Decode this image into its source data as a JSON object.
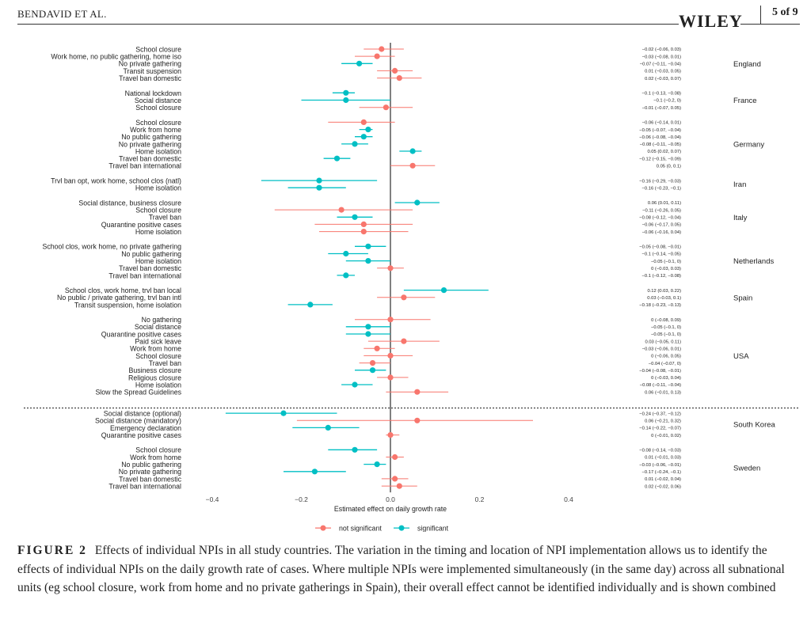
{
  "header": {
    "authors": "BENDAVID ET AL.",
    "publisher": "WILEY",
    "page": "5 of 9"
  },
  "caption": {
    "label": "FIGURE 2",
    "text": "Effects of individual NPIs in all study countries. The variation in the timing and location of NPI implementation allows us to identify the effects of individual NPIs on the daily growth rate of cases. Where multiple NPIs were implemented simultaneously (in the same day) across all subnational units (eg school closure, work from home and no private gatherings in Spain), their overall effect cannot be identified individually and is shown combined"
  },
  "colors": {
    "not_significant": "#f8766d",
    "significant": "#00bfc4"
  },
  "chart_data": {
    "type": "forest",
    "xlabel": "Estimated effect on daily growth rate",
    "xlim": [
      -0.4,
      0.4
    ],
    "xticks": [
      -0.4,
      -0.2,
      0.0,
      0.2,
      0.4
    ],
    "xtick_labels": [
      "−0.4",
      "−0.2",
      "0.0",
      "0.2",
      "0.4"
    ],
    "legend": [
      {
        "key": "not_significant",
        "label": "not significant"
      },
      {
        "key": "significant",
        "label": "significant"
      }
    ],
    "groups": [
      {
        "country": "England",
        "rows": [
          {
            "label": "School closure",
            "est": -0.02,
            "lo": -0.06,
            "hi": 0.03,
            "sig": false,
            "text": "−0.02 (−0.06, 0.03)"
          },
          {
            "label": "Work home, no public gathering, home iso",
            "est": -0.03,
            "lo": -0.08,
            "hi": 0.01,
            "sig": false,
            "text": "−0.03 (−0.08, 0.01)"
          },
          {
            "label": "No private gathering",
            "est": -0.07,
            "lo": -0.11,
            "hi": -0.04,
            "sig": true,
            "text": "−0.07 (−0.11, −0.04)"
          },
          {
            "label": "Transit suspension",
            "est": 0.01,
            "lo": -0.03,
            "hi": 0.05,
            "sig": false,
            "text": "0.01 (−0.03, 0.05)"
          },
          {
            "label": "Travel ban domestic",
            "est": 0.02,
            "lo": -0.03,
            "hi": 0.07,
            "sig": false,
            "text": "0.02 (−0.03, 0.07)"
          }
        ]
      },
      {
        "country": "France",
        "rows": [
          {
            "label": "National lockdown",
            "est": -0.1,
            "lo": -0.13,
            "hi": -0.08,
            "sig": true,
            "text": "−0.1 (−0.13, −0.08)"
          },
          {
            "label": "Social distance",
            "est": -0.1,
            "lo": -0.2,
            "hi": 0,
            "sig": true,
            "text": "−0.1 (−0.2, 0)"
          },
          {
            "label": "School closure",
            "est": -0.01,
            "lo": -0.07,
            "hi": 0.05,
            "sig": false,
            "text": "−0.01 (−0.07, 0.05)"
          }
        ]
      },
      {
        "country": "Germany",
        "rows": [
          {
            "label": "School closure",
            "est": -0.06,
            "lo": -0.14,
            "hi": 0.01,
            "sig": false,
            "text": "−0.06 (−0.14, 0.01)"
          },
          {
            "label": "Work from home",
            "est": -0.05,
            "lo": -0.07,
            "hi": -0.04,
            "sig": true,
            "text": "−0.05 (−0.07, −0.04)"
          },
          {
            "label": "No public gathering",
            "est": -0.06,
            "lo": -0.08,
            "hi": -0.04,
            "sig": true,
            "text": "−0.06 (−0.08, −0.04)"
          },
          {
            "label": "No private gathering",
            "est": -0.08,
            "lo": -0.11,
            "hi": -0.05,
            "sig": true,
            "text": "−0.08 (−0.11, −0.05)"
          },
          {
            "label": "Home isolation",
            "est": 0.05,
            "lo": 0.02,
            "hi": 0.07,
            "sig": true,
            "text": "0.05 (0.02, 0.07)"
          },
          {
            "label": "Travel ban domestic",
            "est": -0.12,
            "lo": -0.15,
            "hi": -0.09,
            "sig": true,
            "text": "−0.12 (−0.15, −0.09)"
          },
          {
            "label": "Travel ban international",
            "est": 0.05,
            "lo": 0,
            "hi": 0.1,
            "sig": false,
            "text": "0.05 (0, 0.1)"
          }
        ]
      },
      {
        "country": "Iran",
        "rows": [
          {
            "label": "Trvl ban opt, work home, school clos (natl)",
            "est": -0.16,
            "lo": -0.29,
            "hi": -0.03,
            "sig": true,
            "text": "−0.16 (−0.29, −0.03)"
          },
          {
            "label": "Home isolation",
            "est": -0.16,
            "lo": -0.23,
            "hi": -0.1,
            "sig": true,
            "text": "−0.16 (−0.23, −0.1)"
          }
        ]
      },
      {
        "country": "Italy",
        "rows": [
          {
            "label": "Social distance, business closure",
            "est": 0.06,
            "lo": 0.01,
            "hi": 0.11,
            "sig": true,
            "text": "0.06 (0.01, 0.11)"
          },
          {
            "label": "School closure",
            "est": -0.11,
            "lo": -0.26,
            "hi": 0.05,
            "sig": false,
            "text": "−0.11 (−0.26, 0.05)"
          },
          {
            "label": "Travel ban",
            "est": -0.08,
            "lo": -0.12,
            "hi": -0.04,
            "sig": true,
            "text": "−0.08 (−0.12, −0.04)"
          },
          {
            "label": "Quarantine positive cases",
            "est": -0.06,
            "lo": -0.17,
            "hi": 0.05,
            "sig": false,
            "text": "−0.06 (−0.17, 0.05)"
          },
          {
            "label": "Home isolation",
            "est": -0.06,
            "lo": -0.16,
            "hi": 0.04,
            "sig": false,
            "text": "−0.06 (−0.16, 0.04)"
          }
        ]
      },
      {
        "country": "Netherlands",
        "rows": [
          {
            "label": "School clos, work home, no private gathering",
            "est": -0.05,
            "lo": -0.08,
            "hi": -0.01,
            "sig": true,
            "text": "−0.05 (−0.08, −0.01)"
          },
          {
            "label": "No public gathering",
            "est": -0.1,
            "lo": -0.14,
            "hi": -0.05,
            "sig": true,
            "text": "−0.1 (−0.14, −0.05)"
          },
          {
            "label": "Home isolation",
            "est": -0.05,
            "lo": -0.1,
            "hi": 0,
            "sig": true,
            "text": "−0.05 (−0.1, 0)"
          },
          {
            "label": "Travel ban domestic",
            "est": 0,
            "lo": -0.03,
            "hi": 0.03,
            "sig": false,
            "text": "0 (−0.03, 0.03)"
          },
          {
            "label": "Travel ban international",
            "est": -0.1,
            "lo": -0.12,
            "hi": -0.08,
            "sig": true,
            "text": "−0.1 (−0.12, −0.08)"
          }
        ]
      },
      {
        "country": "Spain",
        "rows": [
          {
            "label": "School clos, work home, trvl ban local",
            "est": 0.12,
            "lo": 0.03,
            "hi": 0.22,
            "sig": true,
            "text": "0.12 (0.03, 0.22)"
          },
          {
            "label": "No public / private gathering, trvl ban intl",
            "est": 0.03,
            "lo": -0.03,
            "hi": 0.1,
            "sig": false,
            "text": "0.03 (−0.03, 0.1)"
          },
          {
            "label": "Transit suspension, home isolation",
            "est": -0.18,
            "lo": -0.23,
            "hi": -0.13,
            "sig": true,
            "text": "−0.18 (−0.23, −0.13)"
          }
        ]
      },
      {
        "country": "USA",
        "rows": [
          {
            "label": "No gathering",
            "est": 0,
            "lo": -0.08,
            "hi": 0.09,
            "sig": false,
            "text": "0 (−0.08, 0.09)"
          },
          {
            "label": "Social distance",
            "est": -0.05,
            "lo": -0.1,
            "hi": 0,
            "sig": true,
            "text": "−0.05 (−0.1, 0)"
          },
          {
            "label": "Quarantine positive cases",
            "est": -0.05,
            "lo": -0.1,
            "hi": 0,
            "sig": true,
            "text": "−0.05 (−0.1, 0)"
          },
          {
            "label": "Paid sick leave",
            "est": 0.03,
            "lo": -0.05,
            "hi": 0.11,
            "sig": false,
            "text": "0.03 (−0.05, 0.11)"
          },
          {
            "label": "Work from home",
            "est": -0.03,
            "lo": -0.06,
            "hi": 0.01,
            "sig": false,
            "text": "−0.03 (−0.06, 0.01)"
          },
          {
            "label": "School closure",
            "est": 0,
            "lo": -0.06,
            "hi": 0.05,
            "sig": false,
            "text": "0 (−0.06, 0.05)"
          },
          {
            "label": "Travel ban",
            "est": -0.04,
            "lo": -0.07,
            "hi": 0,
            "sig": false,
            "text": "−0.04 (−0.07, 0)"
          },
          {
            "label": "Business closure",
            "est": -0.04,
            "lo": -0.08,
            "hi": -0.01,
            "sig": true,
            "text": "−0.04 (−0.08, −0.01)"
          },
          {
            "label": "Religious closure",
            "est": 0,
            "lo": -0.03,
            "hi": 0.04,
            "sig": false,
            "text": "0 (−0.03, 0.04)"
          },
          {
            "label": "Home isolation",
            "est": -0.08,
            "lo": -0.11,
            "hi": -0.04,
            "sig": true,
            "text": "−0.08 (−0.11, −0.04)"
          },
          {
            "label": "Slow the Spread Guidelines",
            "est": 0.06,
            "lo": -0.01,
            "hi": 0.13,
            "sig": false,
            "text": "0.06 (−0.01, 0.13)"
          }
        ]
      },
      {
        "country": "South Korea",
        "separator_before": true,
        "rows": [
          {
            "label": "Social distance (optional)",
            "est": -0.24,
            "lo": -0.37,
            "hi": -0.12,
            "sig": true,
            "text": "−0.24 (−0.37, −0.12)"
          },
          {
            "label": "Social distance (mandatory)",
            "est": 0.06,
            "lo": -0.21,
            "hi": 0.32,
            "sig": false,
            "text": "0.06 (−0.21, 0.32)"
          },
          {
            "label": "Emergency declaration",
            "est": -0.14,
            "lo": -0.22,
            "hi": -0.07,
            "sig": true,
            "text": "−0.14 (−0.22, −0.07)"
          },
          {
            "label": "Quarantine positive cases",
            "est": 0,
            "lo": -0.01,
            "hi": 0.02,
            "sig": false,
            "text": "0 (−0.01, 0.02)"
          }
        ]
      },
      {
        "country": "Sweden",
        "rows": [
          {
            "label": "School closure",
            "est": -0.08,
            "lo": -0.14,
            "hi": -0.03,
            "sig": true,
            "text": "−0.08 (−0.14, −0.03)"
          },
          {
            "label": "Work from home",
            "est": 0.01,
            "lo": -0.01,
            "hi": 0.03,
            "sig": false,
            "text": "0.01 (−0.01, 0.03)"
          },
          {
            "label": "No public gathering",
            "est": -0.03,
            "lo": -0.06,
            "hi": -0.01,
            "sig": true,
            "text": "−0.03 (−0.06, −0.01)"
          },
          {
            "label": "No private gathering",
            "est": -0.17,
            "lo": -0.24,
            "hi": -0.1,
            "sig": true,
            "text": "−0.17 (−0.24, −0.1)"
          },
          {
            "label": "Travel ban domestic",
            "est": 0.01,
            "lo": -0.02,
            "hi": 0.04,
            "sig": false,
            "text": "0.01 (−0.02, 0.04)"
          },
          {
            "label": "Travel ban international",
            "est": 0.02,
            "lo": -0.02,
            "hi": 0.06,
            "sig": false,
            "text": "0.02 (−0.02, 0.06)"
          }
        ]
      }
    ]
  }
}
